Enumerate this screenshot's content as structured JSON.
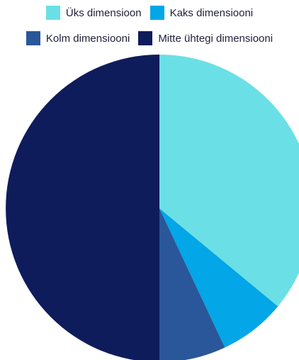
{
  "chart_data": {
    "type": "pie",
    "title": "",
    "legend_position": "top",
    "series": [
      {
        "name": "Üks dimensioon",
        "value": 36,
        "color": "#6ae0e6"
      },
      {
        "name": "Kaks dimensiooni",
        "value": 7,
        "color": "#03a6e6"
      },
      {
        "name": "Kolm dimensiooni",
        "value": 7,
        "color": "#2a5799"
      },
      {
        "name": "Mitte ühtegi dimensiooni",
        "value": 50,
        "color": "#0f1c5c"
      }
    ]
  }
}
